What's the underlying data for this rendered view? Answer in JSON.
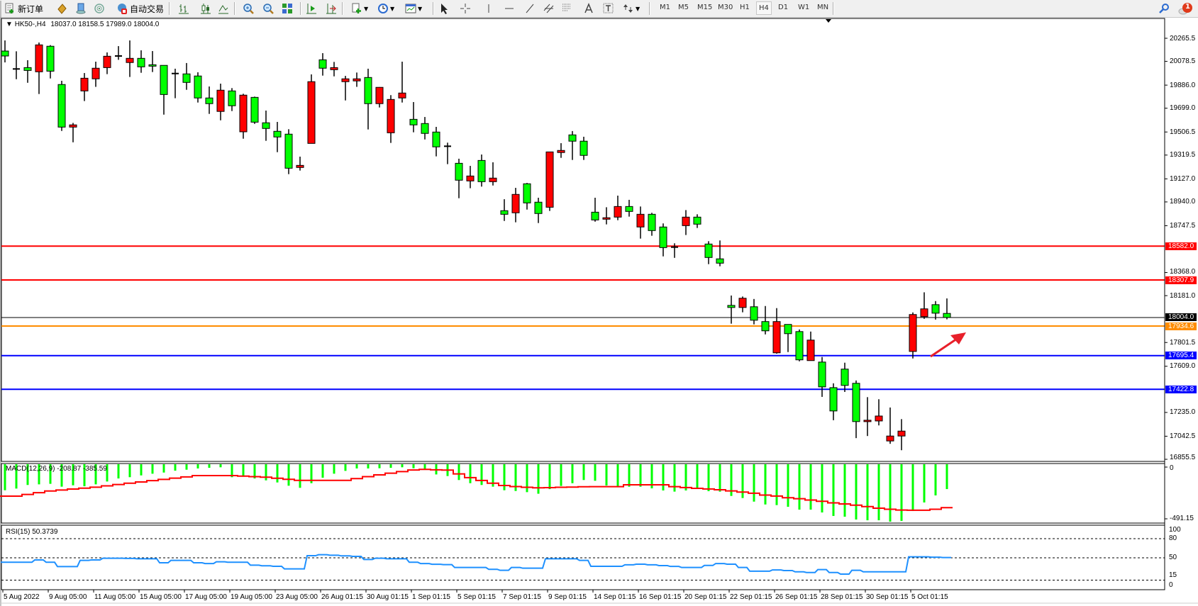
{
  "toolbar": {
    "new_order_label": "新订单",
    "auto_trading_label": "自动交易",
    "timeframes": [
      "M1",
      "M5",
      "M15",
      "M30",
      "H1",
      "H4",
      "D1",
      "W1",
      "MN"
    ],
    "active_timeframe": "H4",
    "notification_count": "1",
    "icons": [
      "new-order-icon",
      "market-watch-icon",
      "data-window-icon",
      "signals-icon",
      "auto-trading-icon",
      "bar-chart-icon",
      "candlestick-icon",
      "line-chart-icon",
      "zoom-in-icon",
      "zoom-out-icon",
      "tile-windows-icon",
      "auto-scroll-icon",
      "chart-shift-icon",
      "indicators-icon",
      "periods-icon",
      "templates-icon",
      "cursor-icon",
      "crosshair-icon",
      "vertical-line-icon",
      "horizontal-line-icon",
      "trendline-icon",
      "equidistant-channel-icon",
      "fibonacci-icon",
      "text-icon",
      "text-label-icon",
      "arrows-icon",
      "search-icon",
      "notification-icon"
    ]
  },
  "chart_header": {
    "symbol_timeframe": "HK50-,H4",
    "ohlc": "18037.0 18158.5 17989.0 18004.0"
  },
  "colors": {
    "bull_body": "#ff0000",
    "bear_body": "#00ff00",
    "macd_histogram": "#00ff00",
    "macd_signal": "#ff0000",
    "rsi_line": "#1e90ff",
    "bid_line": "#000000"
  },
  "price_axis": {
    "ticks": [
      "20265.5",
      "20078.5",
      "19886.0",
      "19699.0",
      "19506.5",
      "19319.5",
      "19127.0",
      "18940.0",
      "18747.5",
      "18368.0",
      "18181.0",
      "17801.5",
      "17609.0",
      "17235.0",
      "17042.5",
      "16855.5"
    ]
  },
  "levels": [
    {
      "price": "18582.0",
      "color": "#ff0000"
    },
    {
      "price": "18307.9",
      "color": "#ff0000"
    },
    {
      "price": "18004.0",
      "color": "#000000"
    },
    {
      "price": "17934.6",
      "color": "#ff8c00"
    },
    {
      "price": "17695.4",
      "color": "#0000ff"
    },
    {
      "price": "17422.8",
      "color": "#0000ff"
    }
  ],
  "macd": {
    "label": "MACD(12,26,9) -208.87 -385.59",
    "axis": [
      "0",
      "-491.15"
    ]
  },
  "rsi": {
    "label": "RSI(15) 50.3739",
    "axis": [
      "100",
      "80",
      "50",
      "15",
      "0"
    ],
    "levels": [
      80,
      50,
      15
    ]
  },
  "time_axis": [
    "5 Aug 2022",
    "9 Aug 05:00",
    "11 Aug 05:00",
    "15 Aug 05:00",
    "17 Aug 05:00",
    "19 Aug 05:00",
    "23 Aug 05:00",
    "26 Aug 01:15",
    "30 Aug 01:15",
    "1 Sep 01:15",
    "5 Sep 01:15",
    "7 Sep 01:15",
    "9 Sep 01:15",
    "14 Sep 01:15",
    "16 Sep 01:15",
    "20 Sep 01:15",
    "22 Sep 01:15",
    "26 Sep 01:15",
    "28 Sep 01:15",
    "30 Sep 01:15",
    "5 Oct 01:15"
  ],
  "chart_data": {
    "type": "candlestick",
    "ohlc": [
      [
        20162,
        20248,
        20070,
        20122
      ],
      [
        20017,
        20160,
        19934,
        20017
      ],
      [
        20028,
        20088,
        19905,
        20005
      ],
      [
        19994,
        20231,
        19814,
        20212
      ],
      [
        20201,
        20210,
        19940,
        19999
      ],
      [
        19891,
        19921,
        19515,
        19546
      ],
      [
        19546,
        19580,
        19423,
        19564
      ],
      [
        19839,
        19984,
        19757,
        19942
      ],
      [
        19937,
        20076,
        19872,
        20023
      ],
      [
        20028,
        20151,
        19975,
        20120
      ],
      [
        20122,
        20202,
        20091,
        20122
      ],
      [
        20069,
        20248,
        19952,
        20103
      ],
      [
        20103,
        20168,
        19986,
        20034
      ],
      [
        20051,
        20162,
        19992,
        20040
      ],
      [
        20046,
        20046,
        19647,
        19810
      ],
      [
        19980,
        20019,
        19780,
        19980
      ],
      [
        19977,
        20065,
        19848,
        19908
      ],
      [
        19960,
        19990,
        19745,
        19782
      ],
      [
        19782,
        19875,
        19653,
        19736
      ],
      [
        19673,
        19898,
        19601,
        19845
      ],
      [
        19839,
        19862,
        19676,
        19719
      ],
      [
        19508,
        19816,
        19452,
        19805
      ],
      [
        19787,
        19793,
        19572,
        19586
      ],
      [
        19581,
        19680,
        19435,
        19535
      ],
      [
        19512,
        19588,
        19343,
        19466
      ],
      [
        19489,
        19529,
        19165,
        19213
      ],
      [
        19219,
        19307,
        19194,
        19236
      ],
      [
        19414,
        19973,
        19414,
        19914
      ],
      [
        20091,
        20145,
        19963,
        20023
      ],
      [
        20011,
        20074,
        19957,
        20028
      ],
      [
        19914,
        19961,
        19762,
        19937
      ],
      [
        19920,
        19988,
        19872,
        19937
      ],
      [
        19948,
        20019,
        19527,
        19736
      ],
      [
        19736,
        19870,
        19705,
        19868
      ],
      [
        19500,
        19805,
        19418,
        19770
      ],
      [
        19782,
        20076,
        19745,
        19822
      ],
      [
        19609,
        19749,
        19504,
        19564
      ],
      [
        19575,
        19628,
        19446,
        19495
      ],
      [
        19506,
        19548,
        19309,
        19386
      ],
      [
        19391,
        19420,
        19246,
        19391
      ],
      [
        19253,
        19290,
        18970,
        19116
      ],
      [
        19110,
        19232,
        19051,
        19150
      ],
      [
        19276,
        19324,
        19064,
        19104
      ],
      [
        19104,
        19261,
        19073,
        19133
      ],
      [
        18869,
        18962,
        18786,
        18840
      ],
      [
        18852,
        19054,
        18775,
        19001
      ],
      [
        19087,
        19094,
        18878,
        18932
      ],
      [
        18938,
        18974,
        18769,
        18846
      ],
      [
        18897,
        19345,
        18867,
        19345
      ],
      [
        19340,
        19416,
        19297,
        19357
      ],
      [
        19483,
        19514,
        19280,
        19432
      ],
      [
        19432,
        19468,
        19280,
        19317
      ],
      [
        18857,
        18974,
        18780,
        18794
      ],
      [
        18800,
        18897,
        18758,
        18812
      ],
      [
        18817,
        18991,
        18792,
        18903
      ],
      [
        18903,
        18957,
        18821,
        18863
      ],
      [
        18737,
        18903,
        18643,
        18840
      ],
      [
        18840,
        18852,
        18666,
        18708
      ],
      [
        18737,
        18766,
        18499,
        18570
      ],
      [
        18574,
        18605,
        18487,
        18574
      ],
      [
        18748,
        18874,
        18672,
        18817
      ],
      [
        18817,
        18840,
        18729,
        18760
      ],
      [
        18599,
        18622,
        18436,
        18490
      ],
      [
        18479,
        18628,
        18419,
        18444
      ],
      [
        18102,
        18182,
        17954,
        18085
      ],
      [
        18085,
        18174,
        18046,
        18160
      ],
      [
        18091,
        18154,
        17948,
        17982
      ],
      [
        17971,
        18097,
        17867,
        17896
      ],
      [
        17718,
        18080,
        17711,
        17971
      ],
      [
        17948,
        17948,
        17724,
        17873
      ],
      [
        17890,
        17907,
        17649,
        17661
      ],
      [
        17655,
        17890,
        17655,
        17821
      ],
      [
        17643,
        17684,
        17361,
        17442
      ],
      [
        17436,
        17471,
        17172,
        17247
      ],
      [
        17586,
        17638,
        17401,
        17454
      ],
      [
        17471,
        17494,
        17027,
        17161
      ],
      [
        17161,
        17359,
        17044,
        17172
      ],
      [
        17166,
        17342,
        17130,
        17206
      ],
      [
        17004,
        17275,
        16981,
        17044
      ],
      [
        17044,
        17181,
        16929,
        17084
      ],
      [
        17729,
        18045,
        17672,
        18028
      ],
      [
        18011,
        18208,
        17993,
        18074
      ],
      [
        18108,
        18137,
        17987,
        18039
      ],
      [
        18037,
        18158.5,
        17989,
        18004
      ]
    ],
    "macd_main": [
      -220,
      -204,
      -170,
      -164,
      -159,
      -186,
      -173,
      -182,
      -164,
      -137,
      -108,
      -96,
      -79,
      -63,
      -52,
      -34,
      -25,
      -13,
      -7,
      -2,
      -96,
      -92,
      -108,
      -126,
      -146,
      -177,
      -197,
      -153,
      -101,
      -63,
      -36,
      -13,
      -13,
      -11,
      -7,
      -2,
      -11,
      -25,
      -70,
      -85,
      -123,
      -153,
      -170,
      -186,
      -220,
      -227,
      -238,
      -253,
      -209,
      -179,
      -153,
      -123,
      -130,
      -175,
      -182,
      -186,
      -186,
      -202,
      -222,
      -233,
      -222,
      -202,
      -229,
      -233,
      -274,
      -294,
      -328,
      -355,
      -361,
      -377,
      -404,
      -404,
      -431,
      -464,
      -471,
      -498,
      -505,
      -505,
      -518,
      -511,
      -417,
      -336,
      -269,
      -208.87
    ],
    "macd_signal": [
      -276,
      -276,
      -260,
      -243,
      -227,
      -218,
      -209,
      -200,
      -191,
      -178,
      -166,
      -153,
      -141,
      -129,
      -117,
      -105,
      -93,
      -81,
      -81,
      -81,
      -81,
      -86,
      -91,
      -96,
      -106,
      -116,
      -126,
      -126,
      -126,
      -126,
      -126,
      -109,
      -91,
      -74,
      -58,
      -43,
      -28,
      -22,
      -26,
      -29,
      -65,
      -100,
      -127,
      -153,
      -175,
      -185,
      -192,
      -197,
      -195,
      -192,
      -190,
      -187,
      -186,
      -186,
      -186,
      -168,
      -168,
      -168,
      -168,
      -186,
      -194,
      -202,
      -208,
      -215,
      -226,
      -237,
      -248,
      -266,
      -275,
      -291,
      -300,
      -313,
      -325,
      -340,
      -350,
      -362,
      -375,
      -390,
      -400,
      -408,
      -410,
      -410,
      -400,
      -385.59
    ],
    "rsi": [
      43,
      43,
      43,
      46.7,
      43,
      36.3,
      36.3,
      46,
      46.7,
      49.3,
      49.3,
      49,
      48.5,
      48.5,
      42.2,
      46,
      46,
      42.2,
      41,
      43.7,
      43,
      43,
      38.5,
      37.5,
      36.7,
      32.6,
      32.6,
      53.3,
      54.8,
      54,
      53,
      52.2,
      47.4,
      49.3,
      48.5,
      48.5,
      43,
      41,
      39.9,
      39.3,
      34.8,
      34.8,
      34.8,
      32,
      30.4,
      34.8,
      33.7,
      33.7,
      48.5,
      48.5,
      48.5,
      46,
      36.7,
      36.7,
      36.7,
      39,
      40,
      39,
      37.8,
      36.5,
      34.8,
      34.8,
      38,
      41,
      40,
      34.8,
      29,
      29,
      31,
      30,
      28,
      27,
      31.5,
      27,
      24.4,
      30.4,
      28,
      28,
      28,
      28,
      51.5,
      51.5,
      51,
      50.37
    ],
    "price_range": [
      16855.5,
      20265.5
    ],
    "annotation": "red-arrow-up"
  }
}
